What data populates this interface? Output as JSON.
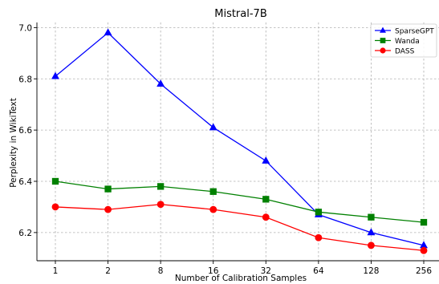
{
  "chart_data": {
    "type": "line",
    "title": "Mistral-7B",
    "xlabel": "Number of Calibration Samples",
    "ylabel": "Perplexity in WikiText",
    "categories": [
      "1",
      "2",
      "8",
      "16",
      "32",
      "64",
      "128",
      "256"
    ],
    "ylim": [
      6.09,
      7.02
    ],
    "yticks": [
      "6.2",
      "6.4",
      "6.6",
      "6.8",
      "7.0"
    ],
    "grid": true,
    "legend_position": "top-right",
    "series": [
      {
        "name": "SparseGPT",
        "color": "#0000ff",
        "marker": "triangle",
        "values": [
          6.81,
          6.98,
          6.78,
          6.61,
          6.48,
          6.27,
          6.2,
          6.15
        ]
      },
      {
        "name": "Wanda",
        "color": "#008000",
        "marker": "square",
        "values": [
          6.4,
          6.37,
          6.38,
          6.36,
          6.33,
          6.28,
          6.26,
          6.24
        ]
      },
      {
        "name": "DASS",
        "color": "#ff0000",
        "marker": "circle",
        "values": [
          6.3,
          6.29,
          6.31,
          6.29,
          6.26,
          6.18,
          6.15,
          6.13
        ]
      }
    ]
  }
}
